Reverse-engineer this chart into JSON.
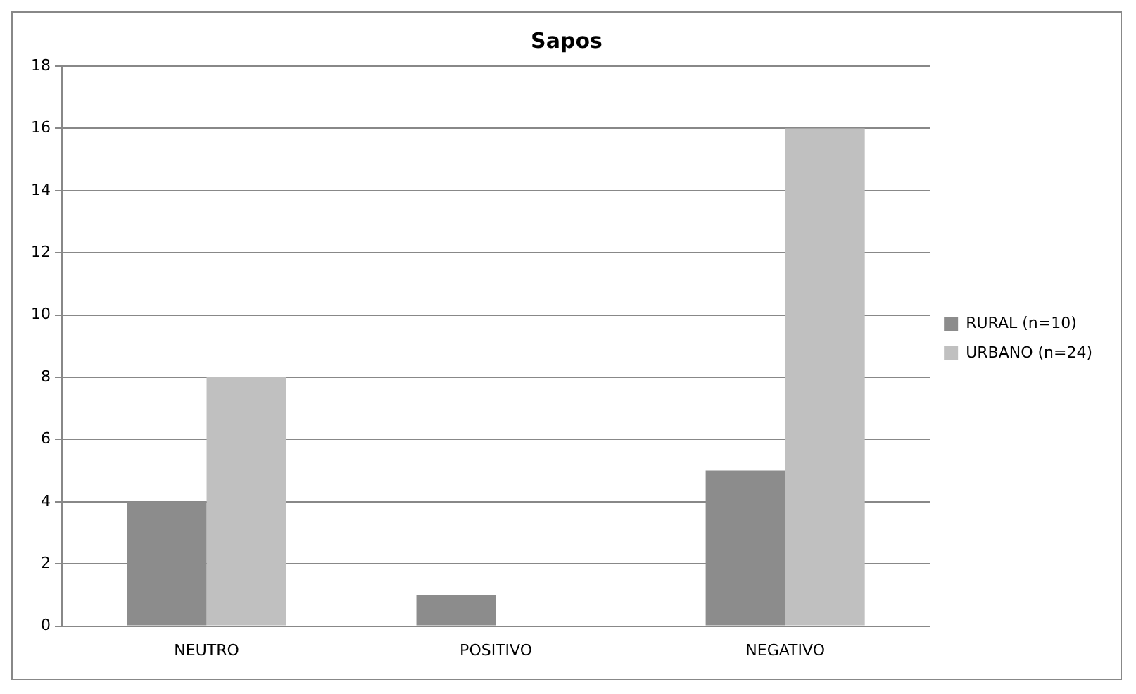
{
  "chart_data": {
    "type": "bar",
    "title": "Sapos",
    "categories": [
      "NEUTRO",
      "POSITIVO",
      "NEGATIVO"
    ],
    "series": [
      {
        "name": "RURAL (n=10)",
        "color": "#8c8c8c",
        "values": [
          4,
          1,
          5
        ]
      },
      {
        "name": "URBANO (n=24)",
        "color": "#c0c0c0",
        "values": [
          8,
          0,
          16
        ]
      }
    ],
    "ylim": [
      0,
      18
    ],
    "yticks": [
      0,
      2,
      4,
      6,
      8,
      10,
      12,
      14,
      16,
      18
    ],
    "grid": "y",
    "legend": "right"
  }
}
